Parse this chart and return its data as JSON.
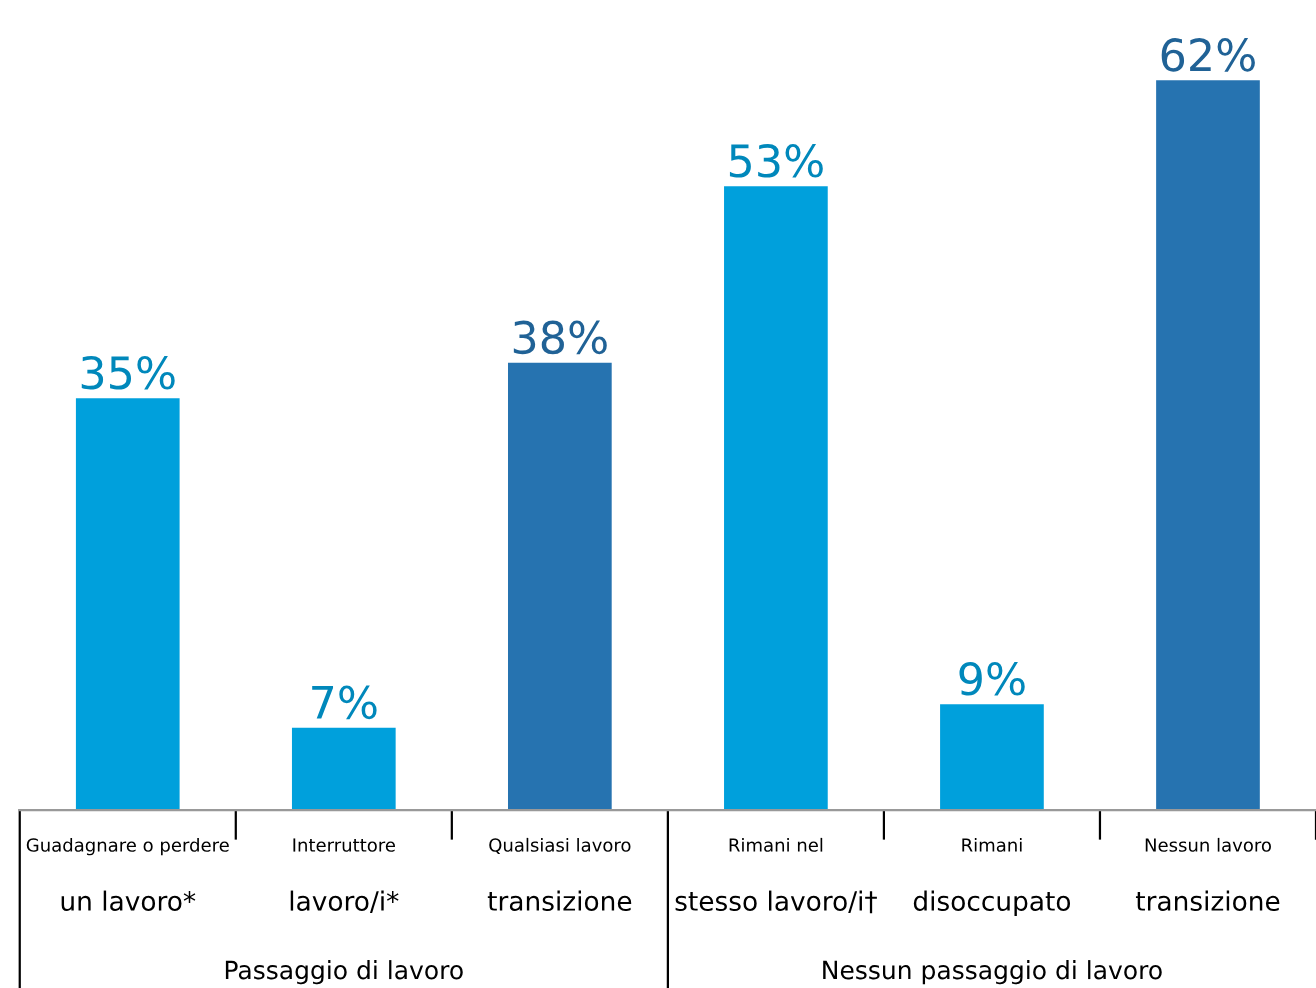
{
  "chart_data": {
    "type": "bar",
    "categories": [
      "Guadagnare o perdere\nun lavoro*",
      "Interruttore\nlavoro/i*",
      "Qualsiasi lavoro\ntransizione",
      "Rimani nel\nstesso lavoro/i†",
      "Rimani\ndisoccupato",
      "Nessun lavoro\ntransizione"
    ],
    "values": [
      35,
      7,
      38,
      53,
      9,
      62
    ],
    "colors": [
      "#00a0dc",
      "#00a0dc",
      "#2673b0",
      "#00a0dc",
      "#00a0dc",
      "#2673b0"
    ],
    "value_labels": [
      "35%",
      "7%",
      "38%",
      "53%",
      "9%",
      "62%"
    ],
    "annotations": [
      "Passaggio di lavoro",
      "Nessun passaggio di lavoro"
    ]
  }
}
